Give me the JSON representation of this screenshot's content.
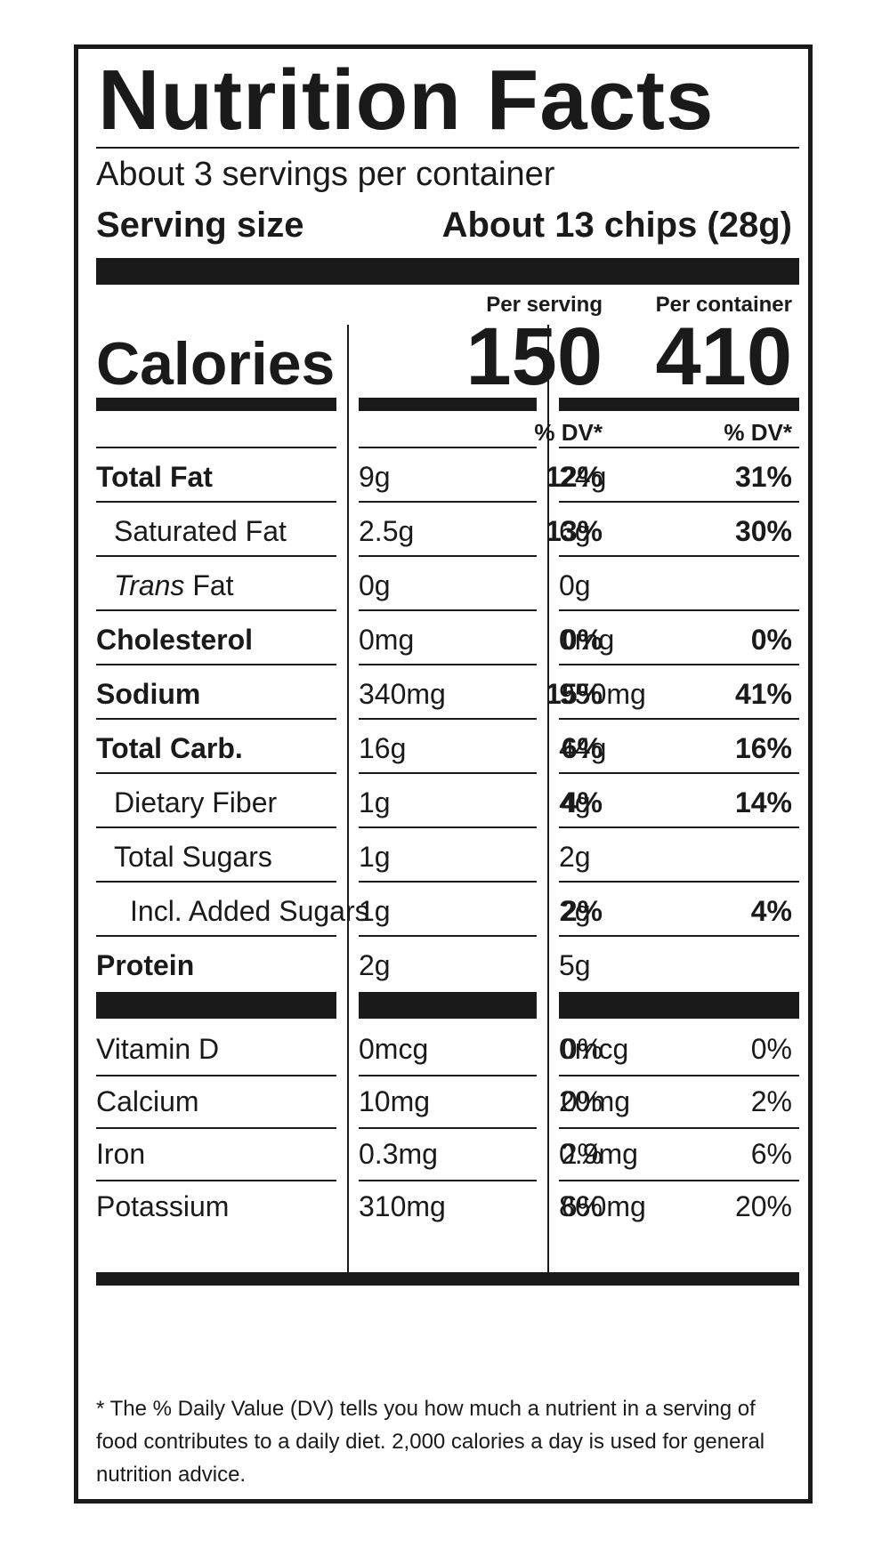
{
  "title": "Nutrition Facts",
  "servings_per_container": "About 3 servings per container",
  "serving_size_label": "Serving size",
  "serving_size_value": "About 13 chips (28g)",
  "col1_header": "Per serving",
  "col2_header": "Per container",
  "calories_label": "Calories",
  "calories_serving": "150",
  "calories_container": "410",
  "dv_header": "% DV*",
  "rows": [
    {
      "name": "Total Fat",
      "s_amt": "9g",
      "s_dv": "12%",
      "c_amt": "24g",
      "c_dv": "31%"
    },
    {
      "name": "Saturated Fat",
      "s_amt": "2.5g",
      "s_dv": "13%",
      "c_amt": "6g",
      "c_dv": "30%"
    },
    {
      "name_italic": "Trans",
      "name_rest": " Fat",
      "s_amt": "0g",
      "s_dv": "",
      "c_amt": "0g",
      "c_dv": ""
    },
    {
      "name": "Cholesterol",
      "s_amt": "0mg",
      "s_dv": "0%",
      "c_amt": "0mg",
      "c_dv": "0%"
    },
    {
      "name": "Sodium",
      "s_amt": "340mg",
      "s_dv": "15%",
      "c_amt": "950mg",
      "c_dv": "41%"
    },
    {
      "name": "Total Carb.",
      "s_amt": "16g",
      "s_dv": "6%",
      "c_amt": "44g",
      "c_dv": "16%"
    },
    {
      "name": "Dietary Fiber",
      "s_amt": "1g",
      "s_dv": "4%",
      "c_amt": "4g",
      "c_dv": "14%"
    },
    {
      "name": "Total Sugars",
      "s_amt": "1g",
      "s_dv": "",
      "c_amt": "2g",
      "c_dv": ""
    },
    {
      "name": "Incl. Added Sugars",
      "s_amt": "1g",
      "s_dv": "2%",
      "c_amt": "2g",
      "c_dv": "4%"
    },
    {
      "name": "Protein",
      "s_amt": "2g",
      "s_dv": "",
      "c_amt": "5g",
      "c_dv": ""
    }
  ],
  "vitamins": [
    {
      "name": "Vitamin D",
      "s_amt": "0mcg",
      "s_dv": "0%",
      "c_amt": "0mcg",
      "c_dv": "0%"
    },
    {
      "name": "Calcium",
      "s_amt": "10mg",
      "s_dv": "0%",
      "c_amt": "20mg",
      "c_dv": "2%"
    },
    {
      "name": "Iron",
      "s_amt": "0.3mg",
      "s_dv": "2%",
      "c_amt": "0.9mg",
      "c_dv": "6%"
    },
    {
      "name": "Potassium",
      "s_amt": "310mg",
      "s_dv": "6%",
      "c_amt": "860mg",
      "c_dv": "20%"
    }
  ],
  "footnote": "* The % Daily Value (DV) tells you how much a nutrient in a serving of food contributes to a daily diet. 2,000 calories a day is used for general nutrition advice."
}
